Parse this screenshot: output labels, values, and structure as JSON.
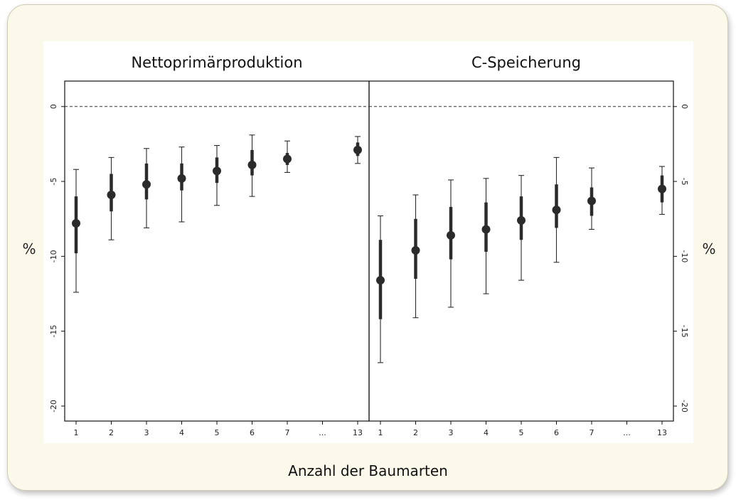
{
  "chart_data": {
    "type": "scatter",
    "subtype": "point-range (median with inner and outer intervals)",
    "xlabel": "Anzahl der Baumarten",
    "ylabel": "%",
    "ylim": [
      -21,
      1.7
    ],
    "yticks": [
      0,
      -5,
      -10,
      -15,
      -20
    ],
    "categories": [
      "1",
      "2",
      "3",
      "4",
      "5",
      "6",
      "7",
      "...",
      "13"
    ],
    "reference_line": {
      "y": 0,
      "style": "dashed"
    },
    "panels": [
      {
        "title": "Nettoprimärproduktion",
        "y_axis_side": "left",
        "series": [
          {
            "x": "1",
            "point": -7.8,
            "inner": [
              -9.8,
              -6.0
            ],
            "outer": [
              -12.4,
              -4.2
            ]
          },
          {
            "x": "2",
            "point": -5.9,
            "inner": [
              -7.0,
              -4.5
            ],
            "outer": [
              -8.9,
              -3.4
            ]
          },
          {
            "x": "3",
            "point": -5.2,
            "inner": [
              -6.2,
              -3.8
            ],
            "outer": [
              -8.1,
              -2.8
            ]
          },
          {
            "x": "4",
            "point": -4.8,
            "inner": [
              -5.6,
              -3.8
            ],
            "outer": [
              -7.7,
              -2.7
            ]
          },
          {
            "x": "5",
            "point": -4.3,
            "inner": [
              -5.1,
              -3.4
            ],
            "outer": [
              -6.6,
              -2.6
            ]
          },
          {
            "x": "6",
            "point": -3.9,
            "inner": [
              -4.6,
              -2.9
            ],
            "outer": [
              -6.0,
              -1.9
            ]
          },
          {
            "x": "7",
            "point": -3.5,
            "inner": [
              -3.9,
              -3.1
            ],
            "outer": [
              -4.4,
              -2.3
            ]
          },
          {
            "x": "13",
            "point": -2.9,
            "inner": [
              -3.3,
              -2.4
            ],
            "outer": [
              -3.8,
              -2.0
            ]
          }
        ]
      },
      {
        "title": "C-Speicherung",
        "y_axis_side": "right",
        "series": [
          {
            "x": "1",
            "point": -11.6,
            "inner": [
              -14.2,
              -8.9
            ],
            "outer": [
              -17.1,
              -7.3
            ]
          },
          {
            "x": "2",
            "point": -9.6,
            "inner": [
              -11.5,
              -7.5
            ],
            "outer": [
              -14.1,
              -5.9
            ]
          },
          {
            "x": "3",
            "point": -8.6,
            "inner": [
              -10.2,
              -6.7
            ],
            "outer": [
              -13.4,
              -4.9
            ]
          },
          {
            "x": "4",
            "point": -8.2,
            "inner": [
              -9.7,
              -6.4
            ],
            "outer": [
              -12.5,
              -4.8
            ]
          },
          {
            "x": "5",
            "point": -7.6,
            "inner": [
              -8.9,
              -6.0
            ],
            "outer": [
              -11.6,
              -4.6
            ]
          },
          {
            "x": "6",
            "point": -6.9,
            "inner": [
              -8.1,
              -5.2
            ],
            "outer": [
              -10.4,
              -3.4
            ]
          },
          {
            "x": "7",
            "point": -6.3,
            "inner": [
              -7.3,
              -5.4
            ],
            "outer": [
              -8.2,
              -4.1
            ]
          },
          {
            "x": "13",
            "point": -5.5,
            "inner": [
              -6.4,
              -4.6
            ],
            "outer": [
              -7.2,
              -4.0
            ]
          }
        ]
      }
    ],
    "colors": {
      "marker": "#2b2b2b",
      "frame_fill": "#fbf9ea",
      "frame_border": "#cfcbb4"
    }
  }
}
